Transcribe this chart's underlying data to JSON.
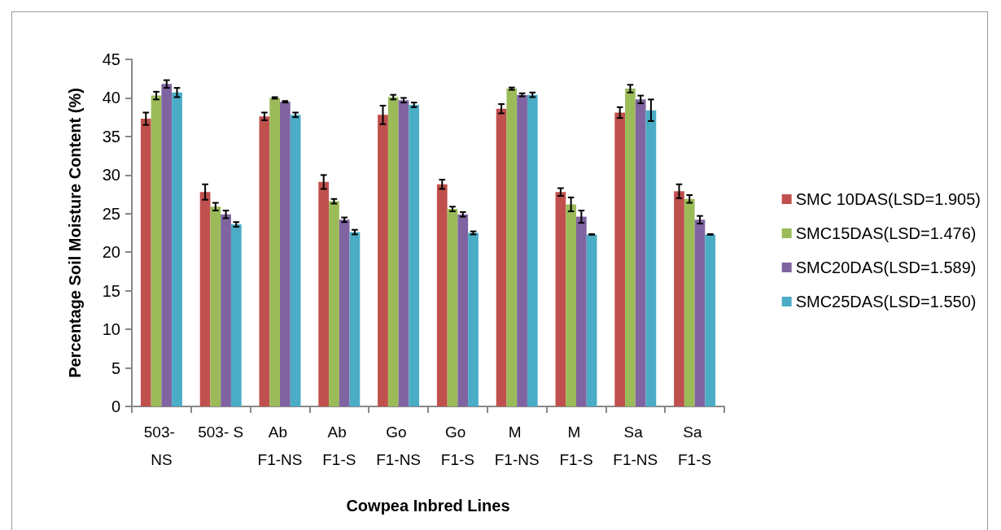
{
  "chart_data": {
    "type": "bar",
    "xlabel": "Cowpea Inbred Lines",
    "ylabel": "Percentage Soil Moisture Content (%)",
    "categories": [
      "503- NS",
      "503- S",
      "Ab F1-NS",
      "Ab F1-S",
      "Go F1-NS",
      "Go F1-S",
      "M F1-NS",
      "M F1-S",
      "Sa F1-NS",
      "Sa F1-S"
    ],
    "series": [
      {
        "name": "SMC 10DAS(LSD=1.905)",
        "color": "#c0504d",
        "values": [
          37.3,
          27.8,
          37.6,
          29.1,
          37.8,
          28.8,
          38.6,
          27.8,
          38.1,
          27.9
        ],
        "errors": [
          0.8,
          1.0,
          0.5,
          0.9,
          1.2,
          0.6,
          0.6,
          0.5,
          0.7,
          0.9
        ]
      },
      {
        "name": "SMC15DAS(LSD=1.476)",
        "color": "#9bbb59",
        "values": [
          40.3,
          25.9,
          40.0,
          26.6,
          40.1,
          25.6,
          41.2,
          26.2,
          41.2,
          26.9
        ],
        "errors": [
          0.5,
          0.5,
          0.1,
          0.3,
          0.3,
          0.3,
          0.15,
          0.9,
          0.5,
          0.5
        ]
      },
      {
        "name": "SMC20DAS(LSD=1.589)",
        "color": "#8064a2",
        "values": [
          41.8,
          24.9,
          39.5,
          24.2,
          39.7,
          24.9,
          40.4,
          24.6,
          39.8,
          24.2
        ],
        "errors": [
          0.5,
          0.5,
          0.1,
          0.3,
          0.3,
          0.3,
          0.2,
          0.8,
          0.5,
          0.5
        ]
      },
      {
        "name": "SMC25DAS(LSD=1.550)",
        "color": "#4bacc6",
        "values": [
          40.7,
          23.6,
          37.8,
          22.6,
          39.1,
          22.5,
          40.4,
          22.3,
          38.4,
          22.3
        ],
        "errors": [
          0.6,
          0.3,
          0.3,
          0.3,
          0.3,
          0.2,
          0.3,
          0.05,
          1.4,
          0.05
        ]
      }
    ],
    "ylim": [
      0,
      45
    ],
    "yticks": [
      0,
      5,
      10,
      15,
      20,
      25,
      30,
      35,
      40,
      45
    ],
    "grid": false,
    "legend": "right"
  }
}
